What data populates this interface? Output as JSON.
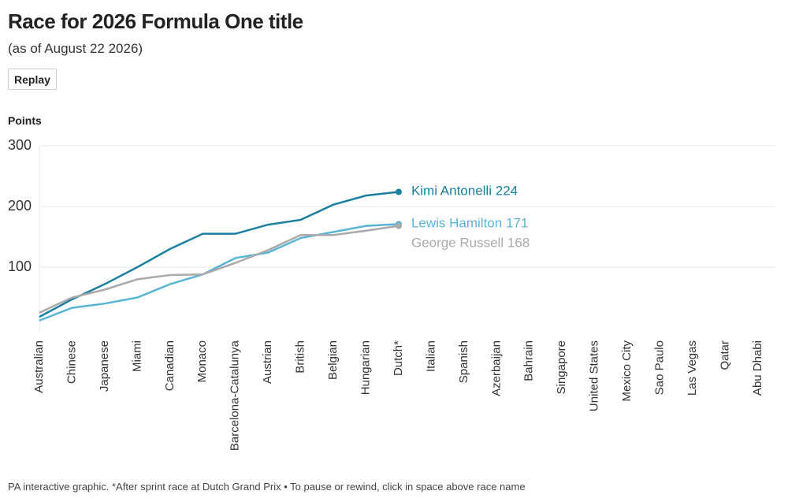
{
  "chart_data": {
    "type": "line",
    "title": "Race for 2026 Formula One title",
    "subtitle": "(as of August 22 2026)",
    "button": "Replay",
    "y_label": "Points",
    "note": "PA interactive graphic. *After sprint race at Dutch Grand Prix • To pause or rewind, click in space above race name",
    "categories": [
      "Australian",
      "Chinese",
      "Japanese",
      "Miami",
      "Canadian",
      "Monaco",
      "Barcelona-Catalunya",
      "Austrian",
      "British",
      "Belgian",
      "Hungarian",
      "Dutch*",
      "Italian",
      "Spanish",
      "Azerbaijan",
      "Bahrain",
      "Singapore",
      "United States",
      "Mexico City",
      "Sao Paulo",
      "Las Vegas",
      "Qatar",
      "Abu Dhabi"
    ],
    "series": [
      {
        "name": "Kimi Antonelli",
        "color": "#1a7fa0",
        "values": [
          18,
          47,
          72,
          100,
          130,
          155,
          155,
          170,
          178,
          203,
          218,
          224,
          null,
          null,
          null,
          null,
          null,
          null,
          null,
          null,
          null,
          null,
          null
        ]
      },
      {
        "name": "Lewis Hamilton",
        "color": "#5ab4d6",
        "values": [
          12,
          33,
          40,
          50,
          72,
          88,
          115,
          124,
          148,
          158,
          168,
          171,
          null,
          null,
          null,
          null,
          null,
          null,
          null,
          null,
          null,
          null,
          null
        ]
      },
      {
        "name": "George Russell",
        "color": "#aaaaaa",
        "values": [
          25,
          50,
          63,
          80,
          87,
          88,
          107,
          128,
          153,
          153,
          160,
          168,
          null,
          null,
          null,
          null,
          null,
          null,
          null,
          null,
          null,
          null,
          null
        ]
      }
    ],
    "ylim": [
      0,
      300
    ],
    "yticks": [
      100,
      200,
      300
    ],
    "grid": true
  }
}
